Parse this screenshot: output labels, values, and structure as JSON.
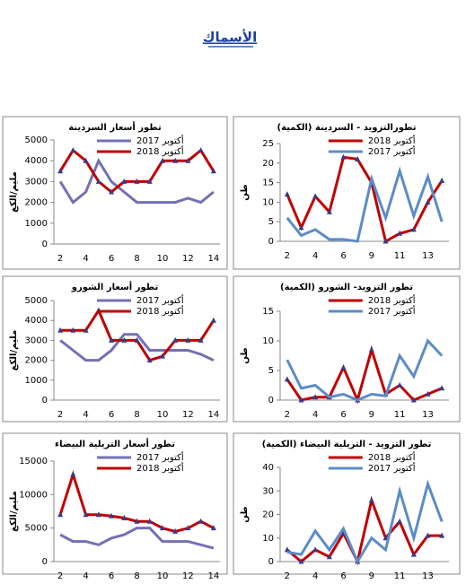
{
  "title": "الأسماك",
  "chart_data": [
    {
      "type": "line",
      "title": "تطور أسعار السردينة",
      "ylabel": "مليم/الكغ",
      "categories": [
        "2",
        null,
        "4",
        null,
        "6",
        null,
        "8",
        null,
        "10",
        null,
        "12",
        null,
        "14"
      ],
      "ylim": [
        0,
        5000
      ],
      "yticks": [
        0,
        1000,
        2000,
        3000,
        4000,
        5000
      ],
      "series": [
        {
          "name": "أكتوبر 2017",
          "color": "#7470b4",
          "values": [
            3000,
            2000,
            2500,
            4000,
            3000,
            2500,
            2000,
            2000,
            2000,
            2000,
            2200,
            2000,
            2500
          ]
        },
        {
          "name": "أكتوبر 2018",
          "color": "#c00000",
          "values": [
            3500,
            4500,
            4000,
            3000,
            2500,
            3000,
            3000,
            3000,
            4000,
            4000,
            4000,
            4500,
            3500
          ]
        }
      ]
    },
    {
      "type": "line",
      "title": "تطورالتزويد - السردينة (الكمية)",
      "ylabel": "طن",
      "categories": [
        "2",
        null,
        "4",
        null,
        "6",
        null,
        "9",
        null,
        "11",
        null,
        "13",
        null
      ],
      "ylim": [
        0,
        25
      ],
      "yticks": [
        0,
        5,
        10,
        15,
        20,
        25
      ],
      "series": [
        {
          "name": "أكتوبر 2018",
          "color": "#c00000",
          "values": [
            12,
            3.5,
            11.5,
            7.5,
            21.5,
            21,
            15,
            0,
            2,
            3,
            10,
            15.5
          ]
        },
        {
          "name": "أكتوبر 2017",
          "color": "#5b8cc8",
          "values": [
            6,
            1.5,
            3,
            0.5,
            0.5,
            0,
            16,
            6,
            18,
            6.5,
            16.5,
            5
          ]
        }
      ]
    },
    {
      "type": "line",
      "title": "تطور أسعار الشورو",
      "ylabel": "مليم/الكغ",
      "categories": [
        "2",
        null,
        "4",
        null,
        "6",
        null,
        "8",
        null,
        "10",
        null,
        "12",
        null,
        "14"
      ],
      "ylim": [
        0,
        5000
      ],
      "yticks": [
        0,
        1000,
        2000,
        3000,
        4000,
        5000
      ],
      "series": [
        {
          "name": "أكتوبر 2017",
          "color": "#7470b4",
          "values": [
            3000,
            2500,
            2000,
            2000,
            2500,
            3300,
            3300,
            2500,
            2500,
            2500,
            2500,
            2300,
            2000
          ]
        },
        {
          "name": "أكتوبر 2018",
          "color": "#c00000",
          "values": [
            3500,
            3500,
            3500,
            4500,
            3000,
            3000,
            3000,
            2000,
            2200,
            3000,
            3000,
            3000,
            4000
          ]
        }
      ]
    },
    {
      "type": "line",
      "title": "تطور التزويد- الشورو (الكمية)",
      "ylabel": "طن",
      "categories": [
        "2",
        null,
        "4",
        null,
        "6",
        null,
        "9",
        null,
        "11",
        null,
        "13",
        null
      ],
      "ylim": [
        0,
        15
      ],
      "yticks": [
        0,
        5,
        10,
        15
      ],
      "series": [
        {
          "name": "أكتوبر 2018",
          "color": "#c00000",
          "values": [
            3.5,
            0,
            0.5,
            0.5,
            5.5,
            0,
            8.5,
            1,
            2.5,
            0,
            1,
            2
          ]
        },
        {
          "name": "أكتوبر 2017",
          "color": "#5b8cc8",
          "values": [
            6.8,
            2,
            2.5,
            0.5,
            1,
            0,
            1,
            0.7,
            7.5,
            4,
            10,
            7.5
          ]
        }
      ]
    },
    {
      "type": "line",
      "title": "تطور أسعار التريلية البيضاء",
      "ylabel": "مليم/الكغ",
      "categories": [
        "2",
        null,
        "4",
        null,
        "6",
        null,
        "8",
        null,
        "10",
        null,
        "12",
        null,
        "14"
      ],
      "ylim": [
        0,
        15000
      ],
      "yticks": [
        0,
        5000,
        10000,
        15000
      ],
      "series": [
        {
          "name": "أكتوبر 2017",
          "color": "#7470b4",
          "values": [
            4000,
            3000,
            3000,
            2500,
            3500,
            4000,
            5000,
            5000,
            3000,
            3000,
            3000,
            2500,
            2000
          ]
        },
        {
          "name": "أكتوبر 2018",
          "color": "#c00000",
          "values": [
            7000,
            13000,
            7000,
            7000,
            6800,
            6500,
            6000,
            6000,
            5000,
            4500,
            5000,
            6000,
            5000
          ]
        }
      ]
    },
    {
      "type": "line",
      "title": "تطور التزويد - التريلية البيضاء (الكمية)",
      "ylabel": "طن",
      "categories": [
        "2",
        null,
        "4",
        null,
        "6",
        null,
        "9",
        null,
        "11",
        null,
        "13",
        null
      ],
      "ylim": [
        0,
        40
      ],
      "yticks": [
        0,
        10,
        20,
        30,
        40
      ],
      "series": [
        {
          "name": "أكتوبر 2018",
          "color": "#c00000",
          "values": [
            5,
            0,
            5,
            2,
            12,
            0,
            26,
            10,
            17,
            3,
            11,
            11
          ]
        },
        {
          "name": "أكتوبر 2017",
          "color": "#5b8cc8",
          "values": [
            4,
            3,
            13,
            5,
            14,
            0,
            10,
            5,
            30,
            10,
            33,
            17
          ]
        }
      ]
    }
  ]
}
